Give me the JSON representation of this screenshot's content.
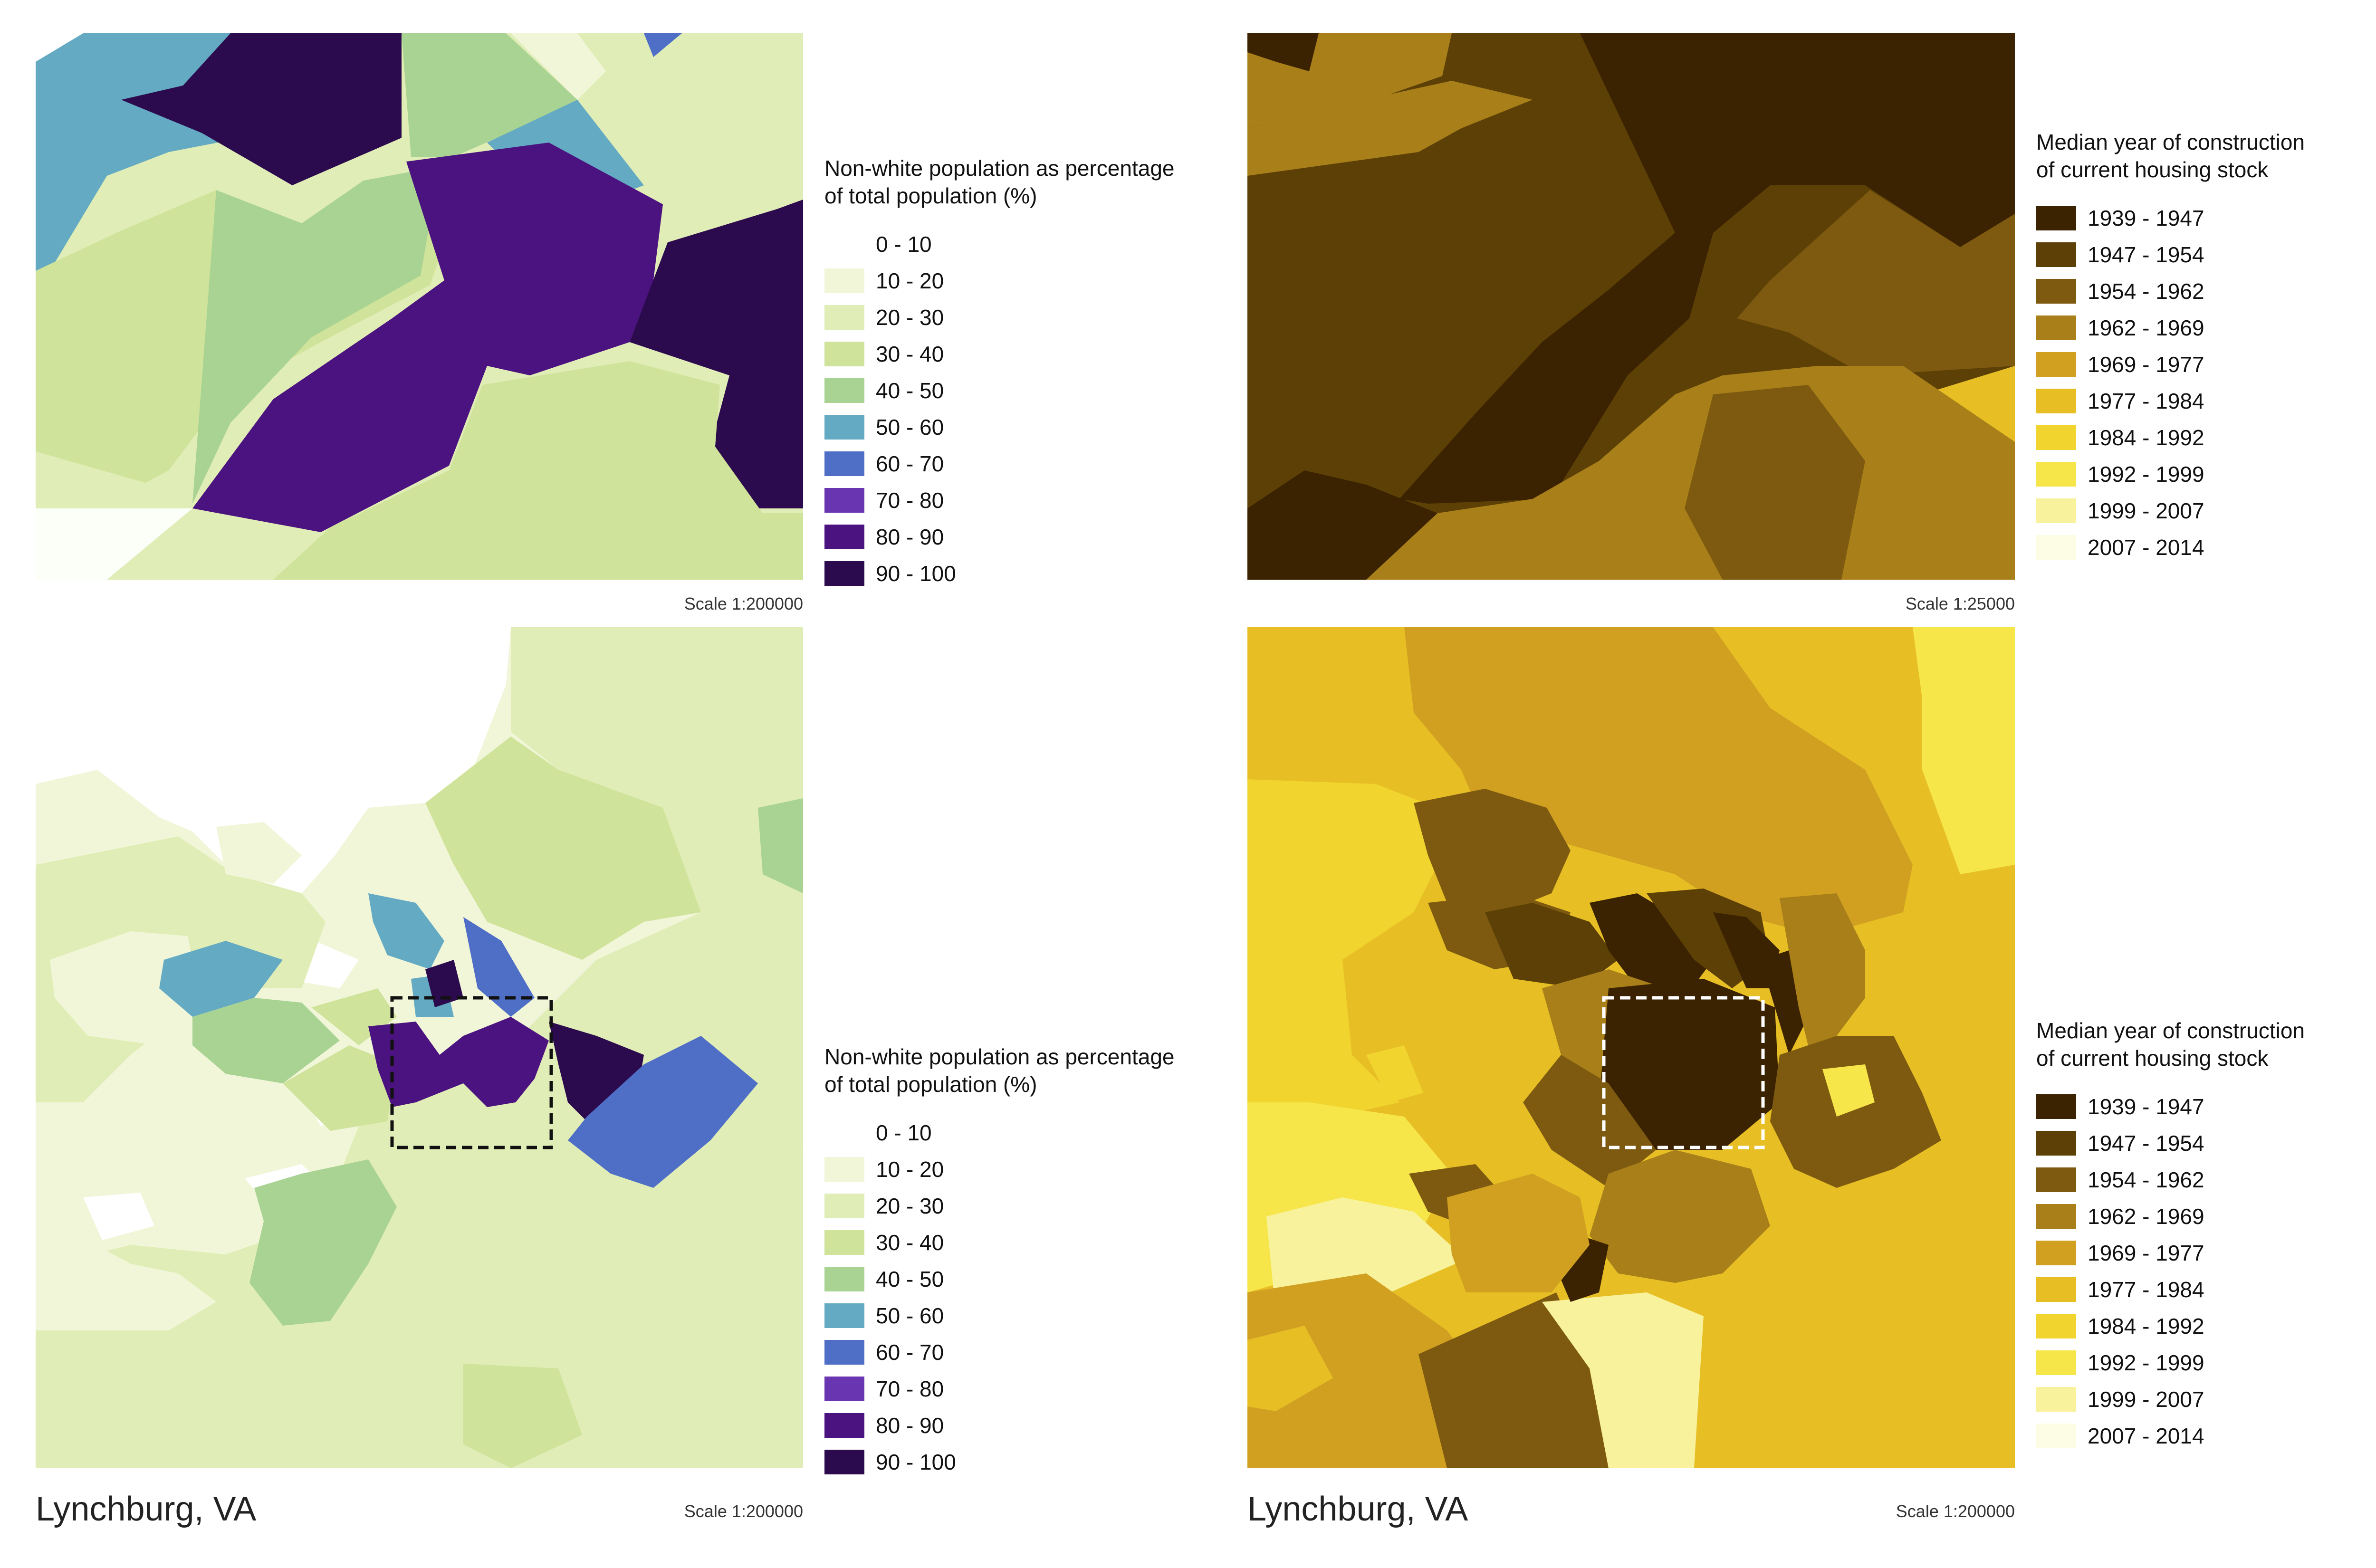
{
  "panels": {
    "top_left": {
      "legend_title": "Non-white population as percentage\nof total population (%)",
      "scale": "Scale 1:200000"
    },
    "top_right": {
      "legend_title": "Median year of construction\nof current housing stock",
      "scale": "Scale 1:25000"
    },
    "bottom_left": {
      "legend_title": "Non-white population as percentage\nof total population (%)",
      "scale": "Scale 1:200000",
      "city": "Lynchburg, VA"
    },
    "bottom_right": {
      "legend_title": "Median year of construction\nof current housing stock",
      "scale": "Scale 1:200000",
      "city": "Lynchburg, VA"
    }
  },
  "legend_population": [
    {
      "label": "0 - 10",
      "color": "#ffffff"
    },
    {
      "label": "10 - 20",
      "color": "#f1f6d9"
    },
    {
      "label": "20 - 30",
      "color": "#e1edb6"
    },
    {
      "label": "30 - 40",
      "color": "#cfe39a"
    },
    {
      "label": "40 - 50",
      "color": "#a9d392"
    },
    {
      "label": "50 - 60",
      "color": "#64aac3"
    },
    {
      "label": "60 - 70",
      "color": "#4f6fc6"
    },
    {
      "label": "70 - 80",
      "color": "#6a35b0"
    },
    {
      "label": "80 - 90",
      "color": "#4b137f"
    },
    {
      "label": "90 - 100",
      "color": "#2b0a4e"
    }
  ],
  "legend_housing": [
    {
      "label": "1939 - 1947",
      "color": "#3b2200"
    },
    {
      "label": "1947 - 1954",
      "color": "#5c4006"
    },
    {
      "label": "1954 - 1962",
      "color": "#7e5a10"
    },
    {
      "label": "1962 - 1969",
      "color": "#a87f18"
    },
    {
      "label": "1969 - 1977",
      "color": "#d1a021"
    },
    {
      "label": "1977 - 1984",
      "color": "#e7bf25"
    },
    {
      "label": "1984 - 1992",
      "color": "#f1d42e"
    },
    {
      "label": "1992 - 1999",
      "color": "#f6e64a"
    },
    {
      "label": "1999 - 2007",
      "color": "#f8f29c"
    },
    {
      "label": "2007 - 2014",
      "color": "#fdfde6"
    }
  ]
}
